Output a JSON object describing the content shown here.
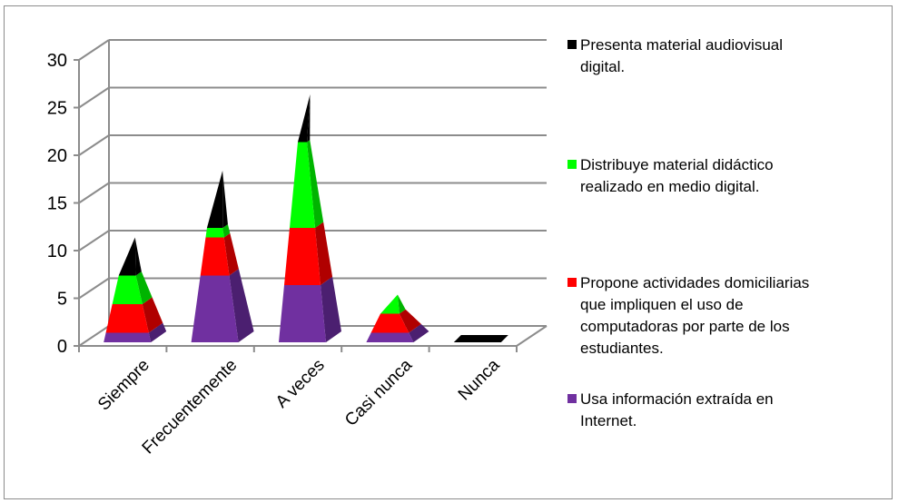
{
  "chart_data": {
    "type": "stacked-pyramid-3d",
    "categories": [
      "Siempre",
      "Frecuentemente",
      "A veces",
      "Casi nunca",
      "Nunca"
    ],
    "series": [
      {
        "name": "Usa información extraída en Internet.",
        "color": "#7030a0",
        "side_color": "#4b1f70",
        "values": [
          1,
          7,
          6,
          1,
          0
        ]
      },
      {
        "name": "Propone actividades domiciliarias que impliquen el uso de computadoras por parte de los estudiantes.",
        "color": "#ff0000",
        "side_color": "#b00000",
        "values": [
          3,
          4,
          6,
          2,
          0
        ]
      },
      {
        "name": "Distribuye material didáctico realizado en medio digital.",
        "color": "#00ff00",
        "side_color": "#00b400",
        "values": [
          3,
          1,
          9,
          2,
          0
        ]
      },
      {
        "name": "Presenta material audiovisual digital.",
        "color": "#000000",
        "side_color": "#000000",
        "values": [
          4,
          6,
          5,
          0,
          0.05
        ]
      }
    ],
    "y_ticks": [
      "0",
      "5",
      "10",
      "15",
      "20",
      "25",
      "30"
    ],
    "ylim": [
      0,
      30
    ],
    "grid": true,
    "legend_position": "right"
  },
  "legend": {
    "items": [
      {
        "label": "Presenta material audiovisual\ndigital.",
        "color": "#000000"
      },
      {
        "label": "Distribuye material didáctico\nrealizado en medio digital.",
        "color": "#00ff00"
      },
      {
        "label": "Propone actividades domiciliarias\nque impliquen el uso de\ncomputadoras por parte de los\nestudiantes.",
        "color": "#ff0000"
      },
      {
        "label": "Usa información extraída en\nInternet.",
        "color": "#7030a0"
      }
    ]
  }
}
